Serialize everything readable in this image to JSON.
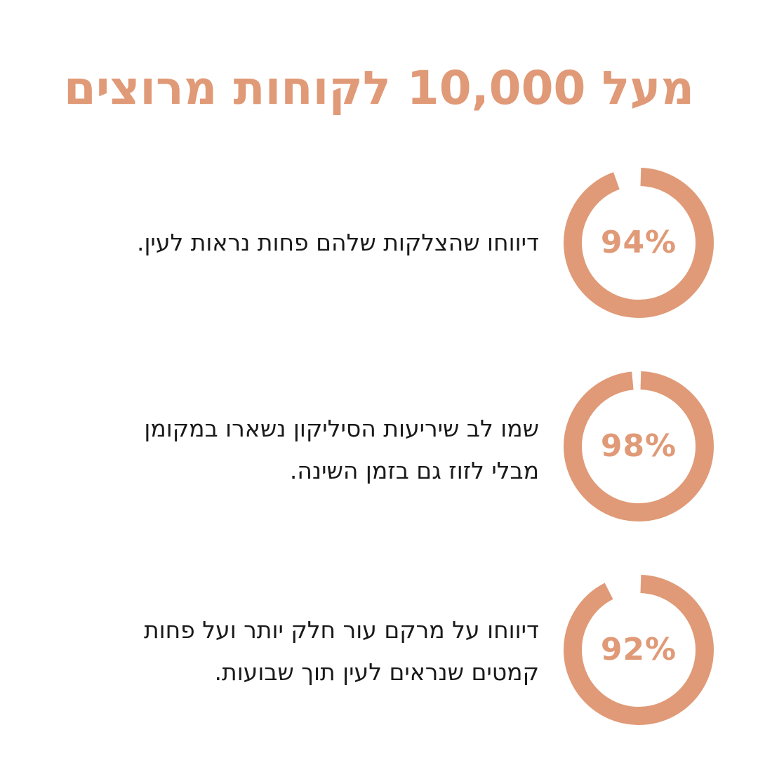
{
  "title": "מעל 10,000 לקוחות מרוצים",
  "accent_color": "#e09a77",
  "text_color": "#1a1a1a",
  "stats": [
    {
      "percent_label": "94%",
      "percent_value": 94,
      "lines": [
        "דיווחו שהצלקות שלהם פחות נראות לעין."
      ]
    },
    {
      "percent_label": "98%",
      "percent_value": 98,
      "lines": [
        "שמו לב שיריעות הסיליקון נשארו במקומן",
        "מבלי לזוז גם בזמן השינה."
      ]
    },
    {
      "percent_label": "92%",
      "percent_value": 92,
      "lines": [
        "דיווחו על מרקם עור חלק יותר ועל פחות",
        "קמטים שנראים לעין תוך שבועות."
      ]
    }
  ]
}
